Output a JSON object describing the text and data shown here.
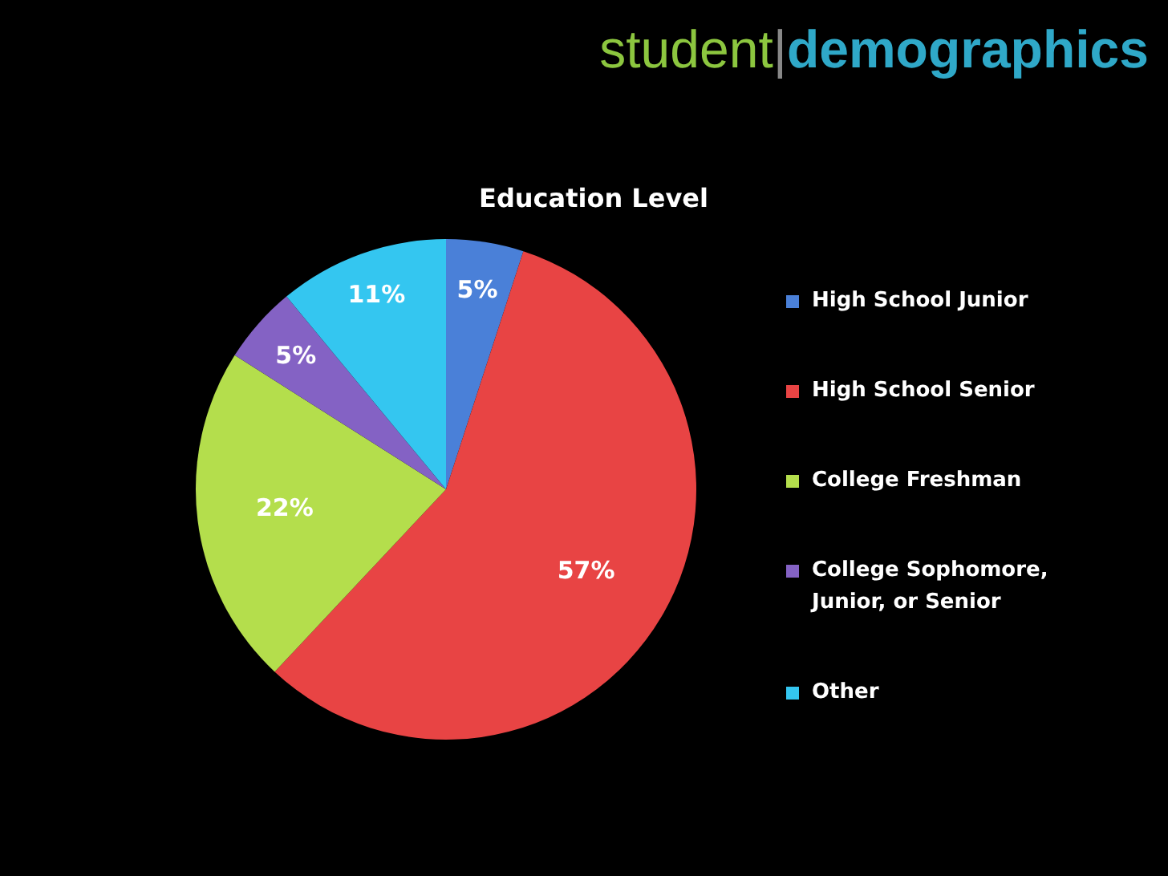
{
  "chart_data": {
    "type": "pie",
    "title": "student|demographics",
    "subtitle": "Education Level",
    "categories": [
      "High School Junior",
      "High School Senior",
      "College Freshman",
      "College Sophomore, Junior, or Senior",
      "Other"
    ],
    "values": [
      5,
      57,
      22,
      5,
      11
    ],
    "value_labels": [
      "5%",
      "57%",
      "22%",
      "5%",
      "11%"
    ],
    "colors": [
      "#4a80d8",
      "#e84444",
      "#b4de4c",
      "#8462c4",
      "#34c6f0"
    ],
    "legend": "right"
  }
}
